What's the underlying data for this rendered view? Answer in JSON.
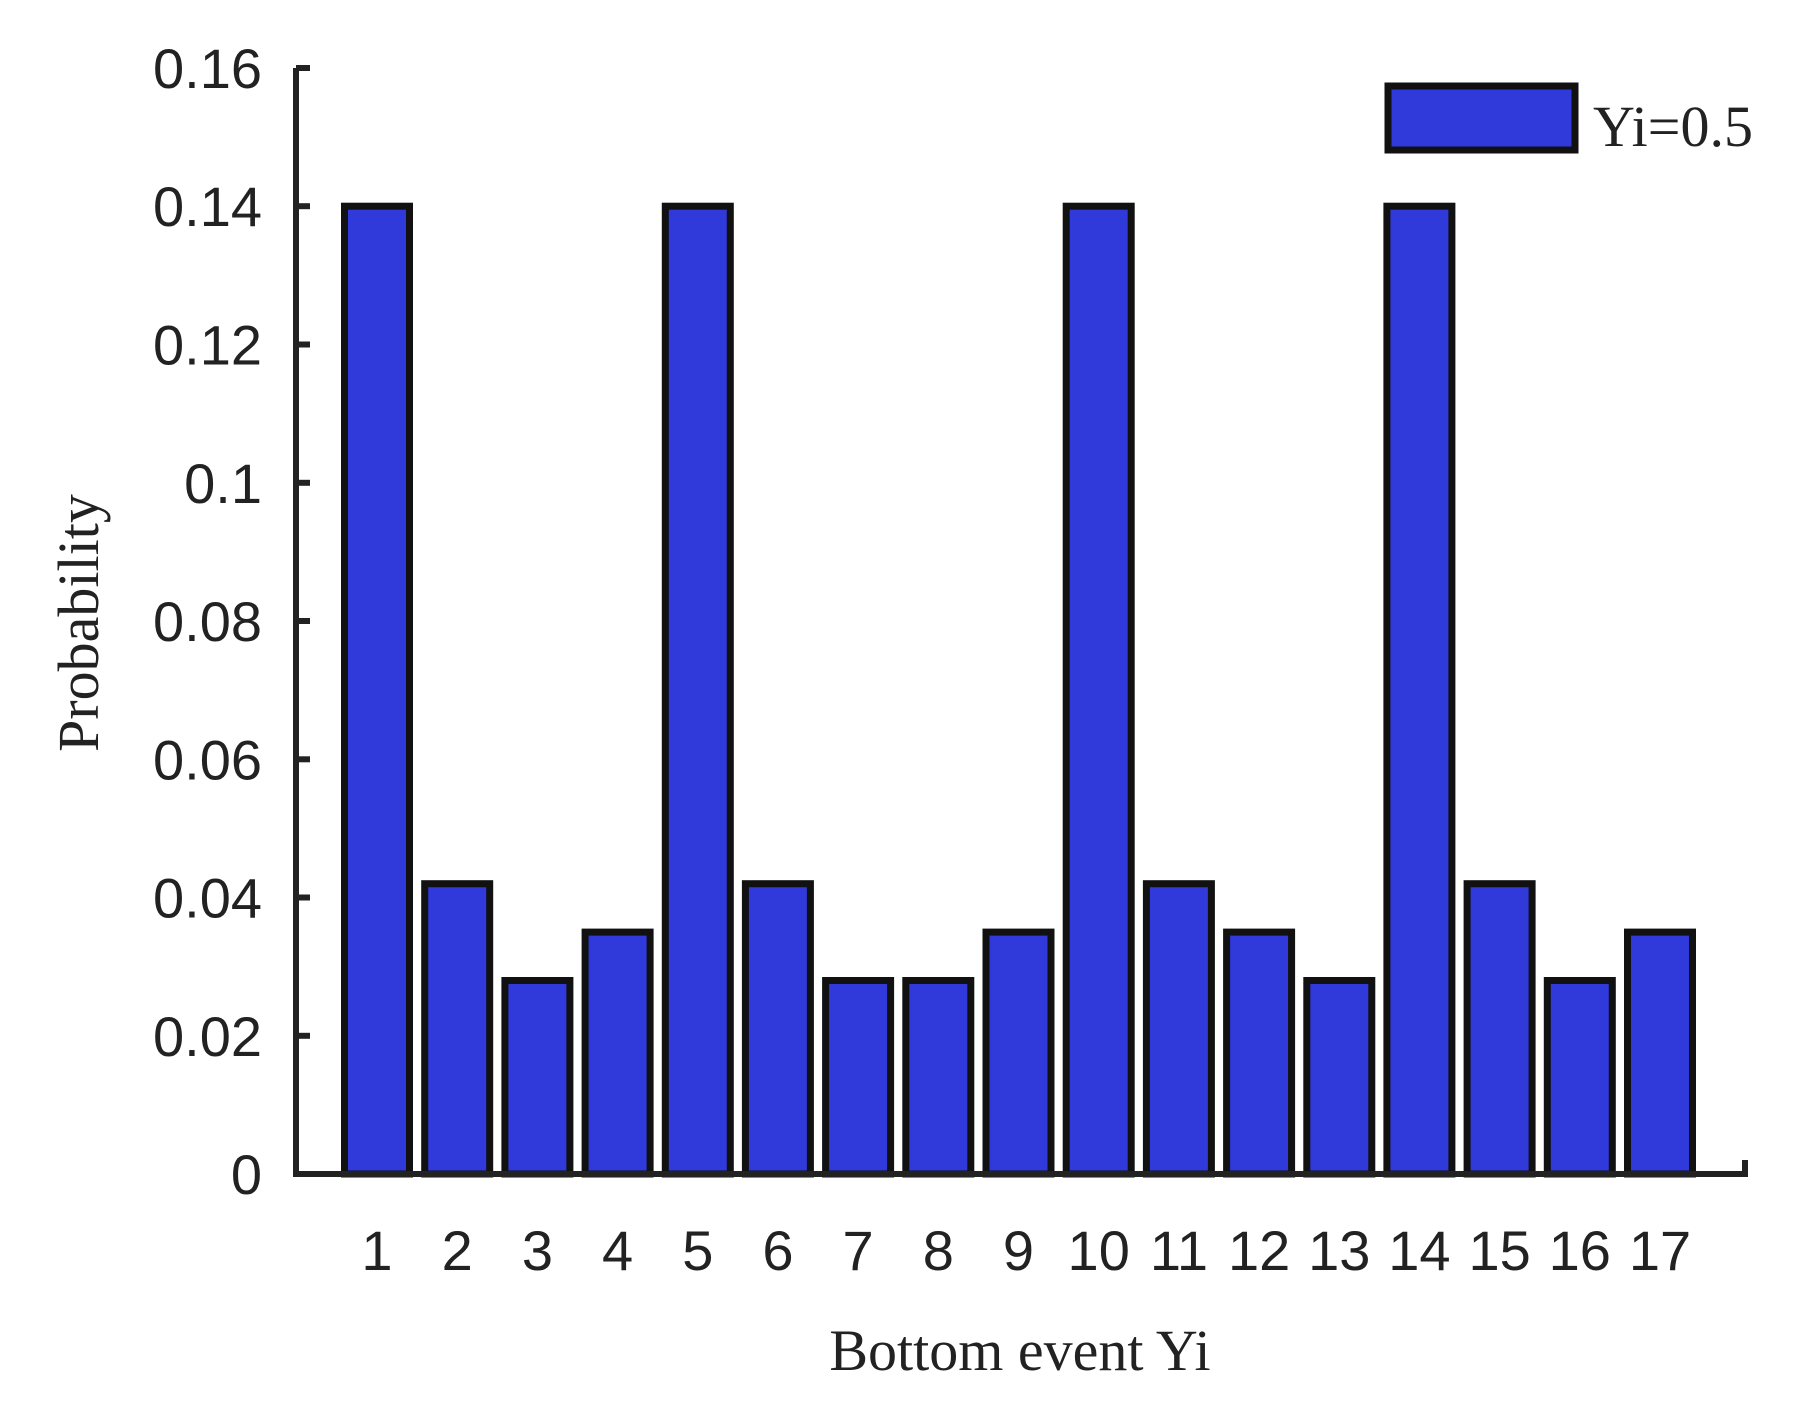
{
  "chart_data": {
    "type": "bar",
    "categories": [
      "1",
      "2",
      "3",
      "4",
      "5",
      "6",
      "7",
      "8",
      "9",
      "10",
      "11",
      "12",
      "13",
      "14",
      "15",
      "16",
      "17"
    ],
    "series": [
      {
        "name": "Yi=0.5",
        "color": "#3039d9",
        "values": [
          0.14,
          0.042,
          0.028,
          0.035,
          0.14,
          0.042,
          0.028,
          0.028,
          0.035,
          0.14,
          0.042,
          0.035,
          0.028,
          0.14,
          0.042,
          0.028,
          0.035
        ]
      }
    ],
    "xlabel": "Bottom event Yi",
    "ylabel": "Probability",
    "ylim": [
      0,
      0.16
    ],
    "yticks": [
      "0",
      "0.02",
      "0.04",
      "0.06",
      "0.08",
      "0.1",
      "0.12",
      "0.14",
      "0.16"
    ],
    "grid": false,
    "legend_position": "top-right",
    "bar_edge_color": "#111111",
    "axis_color": "#222222"
  }
}
